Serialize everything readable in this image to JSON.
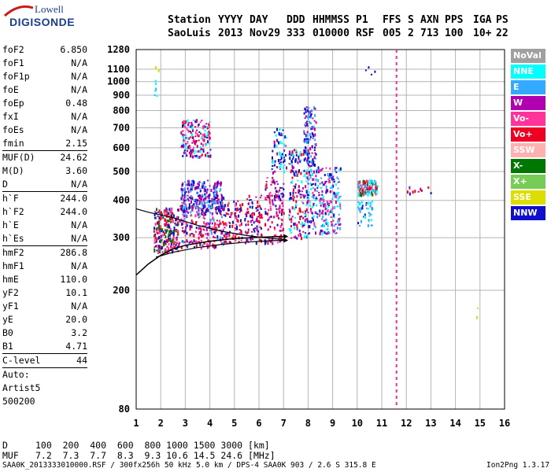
{
  "logo": {
    "line1": "Lowell",
    "line2": "DIGISONDE"
  },
  "header": {
    "labels": [
      "Station",
      "YYYY",
      "DAY",
      "DDD",
      "HHMMSS",
      "P1",
      "FFS",
      "S",
      "AXN",
      "PPS",
      "IGA",
      "PS"
    ],
    "values": [
      "SaoLuis",
      "2013",
      "Nov29",
      "333",
      "010000",
      "RSF",
      "005",
      "2",
      "713",
      "100",
      "10+",
      "22"
    ]
  },
  "params_group1": [
    {
      "name": "foF2",
      "value": "6.850"
    },
    {
      "name": "foF1",
      "value": "N/A"
    },
    {
      "name": "foF1p",
      "value": "N/A"
    },
    {
      "name": "foE",
      "value": "N/A"
    },
    {
      "name": "foEp",
      "value": "0.48"
    },
    {
      "name": "fxI",
      "value": "N/A"
    },
    {
      "name": "foEs",
      "value": "N/A"
    },
    {
      "name": "fmin",
      "value": "2.15"
    }
  ],
  "params_group2": [
    {
      "name": "MUF(D)",
      "value": "24.62"
    },
    {
      "name": "M(D)",
      "value": "3.60"
    },
    {
      "name": "D",
      "value": "N/A"
    }
  ],
  "params_group3": [
    {
      "name": "h`F",
      "value": "244.0"
    },
    {
      "name": "h`F2",
      "value": "244.0"
    },
    {
      "name": "h`E",
      "value": "N/A"
    },
    {
      "name": "h`Es",
      "value": "N/A"
    }
  ],
  "params_group4": [
    {
      "name": "hmF2",
      "value": "286.8"
    },
    {
      "name": "hmF1",
      "value": "N/A"
    },
    {
      "name": "hmE",
      "value": "110.0"
    },
    {
      "name": "yF2",
      "value": "10.1"
    },
    {
      "name": "yF1",
      "value": "N/A"
    },
    {
      "name": "yE",
      "value": "20.0"
    },
    {
      "name": "B0",
      "value": "3.2"
    },
    {
      "name": "B1",
      "value": "4.71"
    }
  ],
  "c_level": {
    "name": "C-level",
    "value": "44"
  },
  "auto": [
    "Auto:",
    "Artist5",
    "500200"
  ],
  "legend": [
    {
      "label": "NoVal",
      "color": "#a0a0a0"
    },
    {
      "label": "NNE",
      "color": "#00ffff"
    },
    {
      "label": "E",
      "color": "#33aaff"
    },
    {
      "label": "W",
      "color": "#b000b0"
    },
    {
      "label": "Vo-",
      "color": "#ff3399"
    },
    {
      "label": "Vo+",
      "color": "#ee0022"
    },
    {
      "label": "SSW",
      "color": "#ffb0b0"
    },
    {
      "label": "X-",
      "color": "#007700"
    },
    {
      "label": "X+",
      "color": "#77cc55"
    },
    {
      "label": "SSE",
      "color": "#dddd00"
    },
    {
      "label": "NNW",
      "color": "#1010cc"
    }
  ],
  "dmuf": {
    "d_label": "D",
    "d_values": "100  200  400  600  800 1000 1500 3000 [km]",
    "muf_label": "MUF",
    "muf_values": "7.2  7.3  7.7  8.3  9.3 10.6 14.5 24.6 [MHz]"
  },
  "footer": {
    "left": "SAA0K_2013333010000.RSF / 300fx256h 50 kHz 5.0 km / DPS-4 SAA0K 903 / 2.6 S 315.8 E",
    "right": "Ion2Png 1.3.17"
  },
  "axes": {
    "x_ticks": [
      "1",
      "2",
      "3",
      "4",
      "5",
      "6",
      "7",
      "8",
      "9",
      "10",
      "11",
      "12",
      "13",
      "14",
      "15",
      "16"
    ],
    "y_ticks": [
      "80",
      "200",
      "300",
      "400",
      "500",
      "600",
      "700",
      "800",
      "900",
      "1000",
      "1100",
      "1280"
    ]
  },
  "chart_data": {
    "type": "scatter",
    "xlim": [
      1,
      16
    ],
    "ylim": [
      80,
      1280
    ],
    "y_scale": "log",
    "grid": true,
    "marker_line_frequency": 11.6,
    "trace_o": [
      [
        1.0,
        225
      ],
      [
        1.5,
        245
      ],
      [
        2,
        262
      ],
      [
        2.5,
        275
      ],
      [
        3,
        283
      ],
      [
        4,
        292
      ],
      [
        5,
        298
      ],
      [
        6,
        301
      ],
      [
        7,
        303
      ]
    ],
    "trace_x": [
      [
        1.8,
        258
      ],
      [
        2.5,
        268
      ],
      [
        3.5,
        278
      ],
      [
        4.5,
        285
      ],
      [
        5.5,
        290
      ],
      [
        6.5,
        293
      ],
      [
        7.0,
        294
      ]
    ],
    "trace_upper": [
      [
        1.0,
        375
      ],
      [
        1.5,
        365
      ],
      [
        2.5,
        350
      ],
      [
        3.5,
        330
      ],
      [
        4.5,
        315
      ],
      [
        5.5,
        305
      ],
      [
        6.5,
        298
      ],
      [
        7.0,
        296
      ]
    ],
    "echo_regions": [
      {
        "x": [
          1.7,
          2.7
        ],
        "y": [
          270,
          380
        ],
        "density": 260,
        "colors": [
          "#ee0022",
          "#ff3399",
          "#007700",
          "#1010cc"
        ]
      },
      {
        "x": [
          2.7,
          4.6
        ],
        "y": [
          280,
          420
        ],
        "density": 320,
        "colors": [
          "#ee0022",
          "#ff3399",
          "#33aaff",
          "#1010cc",
          "#b000b0"
        ]
      },
      {
        "x": [
          2.8,
          4.5
        ],
        "y": [
          370,
          470
        ],
        "density": 200,
        "colors": [
          "#1010cc",
          "#b000b0",
          "#33aaff"
        ]
      },
      {
        "x": [
          2.8,
          4.0
        ],
        "y": [
          560,
          750
        ],
        "density": 180,
        "colors": [
          "#ee0022",
          "#ff3399",
          "#1010cc",
          "#00ffff",
          "#b000b0"
        ]
      },
      {
        "x": [
          4.6,
          5.3
        ],
        "y": [
          290,
          400
        ],
        "density": 90,
        "colors": [
          "#ee0022",
          "#ff3399",
          "#1010cc"
        ]
      },
      {
        "x": [
          5.4,
          6.1
        ],
        "y": [
          290,
          420
        ],
        "density": 90,
        "colors": [
          "#ee0022",
          "#b000b0",
          "#1010cc"
        ]
      },
      {
        "x": [
          6.2,
          7.0
        ],
        "y": [
          290,
          480
        ],
        "density": 140,
        "colors": [
          "#ee0022",
          "#ff3399",
          "#1010cc",
          "#b000b0"
        ]
      },
      {
        "x": [
          6.5,
          7.1
        ],
        "y": [
          500,
          700
        ],
        "density": 70,
        "colors": [
          "#00ffff",
          "#b000b0",
          "#1010cc"
        ]
      },
      {
        "x": [
          7.2,
          8.0
        ],
        "y": [
          300,
          600
        ],
        "density": 200,
        "colors": [
          "#00ffff",
          "#1010cc",
          "#b000b0",
          "#ee0022"
        ]
      },
      {
        "x": [
          7.8,
          8.3
        ],
        "y": [
          520,
          830
        ],
        "density": 120,
        "colors": [
          "#1010cc",
          "#33aaff",
          "#b000b0"
        ]
      },
      {
        "x": [
          8.0,
          9.3
        ],
        "y": [
          310,
          520
        ],
        "density": 260,
        "colors": [
          "#00ffff",
          "#33aaff",
          "#1010cc",
          "#b000b0",
          "#ff3399"
        ]
      },
      {
        "x": [
          10.0,
          10.8
        ],
        "y": [
          420,
          470
        ],
        "density": 120,
        "colors": [
          "#33aaff",
          "#ee0022",
          "#ff3399",
          "#00ffff",
          "#007700"
        ]
      },
      {
        "x": [
          10.0,
          10.6
        ],
        "y": [
          330,
          400
        ],
        "density": 40,
        "colors": [
          "#33aaff",
          "#00ffff",
          "#1010cc"
        ]
      },
      {
        "x": [
          12.0,
          13.0
        ],
        "y": [
          425,
          450
        ],
        "density": 10,
        "colors": [
          "#1010cc",
          "#ee0022",
          "#b000b0"
        ]
      },
      {
        "x": [
          1.7,
          1.9
        ],
        "y": [
          900,
          1160
        ],
        "density": 8,
        "colors": [
          "#00ffff",
          "#dddd00",
          "#33aaff"
        ]
      },
      {
        "x": [
          10.3,
          10.7
        ],
        "y": [
          1050,
          1130
        ],
        "density": 4,
        "colors": [
          "#1010cc"
        ]
      },
      {
        "x": [
          14.8,
          14.9
        ],
        "y": [
          160,
          180
        ],
        "density": 2,
        "colors": [
          "#dddd00"
        ]
      }
    ]
  }
}
